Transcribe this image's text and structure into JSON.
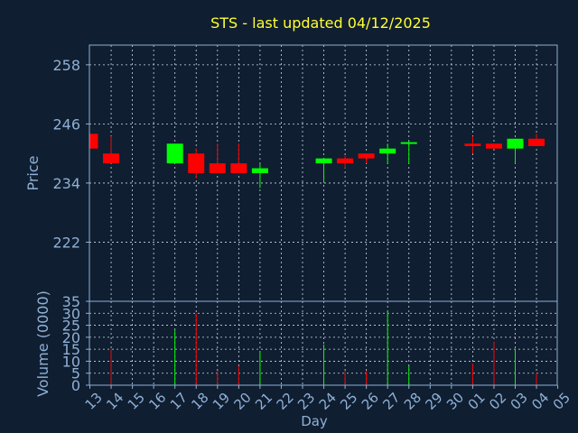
{
  "chart_data": {
    "type": "candlestick",
    "title": "STS - last updated 04/12/2025",
    "xlabel": "Day",
    "colors": {
      "background": "#0f1e30",
      "frame": "#8fb0d6",
      "grid": "#cfd8e6",
      "title": "#ffff33",
      "label": "#8fb0d6",
      "up": "#00ff00",
      "down": "#ff0000"
    },
    "x_ticks": [
      "13",
      "14",
      "15",
      "16",
      "17",
      "18",
      "19",
      "20",
      "21",
      "22",
      "23",
      "24",
      "25",
      "26",
      "27",
      "28",
      "29",
      "30",
      "01",
      "02",
      "03",
      "04",
      "05"
    ],
    "price": {
      "ylabel": "Price",
      "ylim": [
        210,
        262
      ],
      "yticks": [
        222,
        234,
        246,
        258
      ],
      "candles": [
        {
          "day": "13",
          "open": 244,
          "close": 241,
          "high": 244,
          "low": 241
        },
        {
          "day": "14",
          "open": 240,
          "close": 238,
          "high": 243.5,
          "low": 238
        },
        {
          "day": "17",
          "open": 238,
          "close": 242,
          "high": 242,
          "low": 238
        },
        {
          "day": "18",
          "open": 240,
          "close": 236,
          "high": 241,
          "low": 235
        },
        {
          "day": "19",
          "open": 238,
          "close": 236,
          "high": 242,
          "low": 236
        },
        {
          "day": "20",
          "open": 238,
          "close": 236,
          "high": 242,
          "low": 236
        },
        {
          "day": "21",
          "open": 236,
          "close": 237,
          "high": 238,
          "low": 233
        },
        {
          "day": "24",
          "open": 238,
          "close": 239,
          "high": 239,
          "low": 234
        },
        {
          "day": "25",
          "open": 239,
          "close": 238,
          "high": 239.5,
          "low": 237
        },
        {
          "day": "26",
          "open": 240,
          "close": 239,
          "high": 240,
          "low": 238
        },
        {
          "day": "27",
          "open": 240,
          "close": 241,
          "high": 242,
          "low": 238
        },
        {
          "day": "28",
          "open": 242,
          "close": 242.3,
          "high": 242.5,
          "low": 238
        },
        {
          "day": "01",
          "open": 242,
          "close": 241.5,
          "high": 243.5,
          "low": 240
        },
        {
          "day": "02",
          "open": 242,
          "close": 241,
          "high": 242,
          "low": 241
        },
        {
          "day": "03",
          "open": 241,
          "close": 243,
          "high": 243,
          "low": 238
        },
        {
          "day": "04",
          "open": 243,
          "close": 241.5,
          "high": 244,
          "low": 241.5
        }
      ]
    },
    "volume": {
      "ylabel": "Volume (0000)",
      "ylim": [
        0,
        35
      ],
      "yticks": [
        0,
        5,
        10,
        15,
        20,
        25,
        30,
        35
      ],
      "bars": [
        {
          "day": "14",
          "value": 15,
          "direction": "down"
        },
        {
          "day": "17",
          "value": 23,
          "direction": "up"
        },
        {
          "day": "18",
          "value": 30,
          "direction": "down"
        },
        {
          "day": "19",
          "value": 6,
          "direction": "down"
        },
        {
          "day": "20",
          "value": 8,
          "direction": "down"
        },
        {
          "day": "21",
          "value": 14,
          "direction": "up"
        },
        {
          "day": "24",
          "value": 17,
          "direction": "up"
        },
        {
          "day": "25",
          "value": 6,
          "direction": "down"
        },
        {
          "day": "26",
          "value": 6,
          "direction": "down"
        },
        {
          "day": "27",
          "value": 31,
          "direction": "up"
        },
        {
          "day": "28",
          "value": 8,
          "direction": "up"
        },
        {
          "day": "01",
          "value": 9,
          "direction": "down"
        },
        {
          "day": "02",
          "value": 18,
          "direction": "down"
        },
        {
          "day": "03",
          "value": 15,
          "direction": "up"
        },
        {
          "day": "04",
          "value": 5,
          "direction": "down"
        }
      ]
    }
  }
}
